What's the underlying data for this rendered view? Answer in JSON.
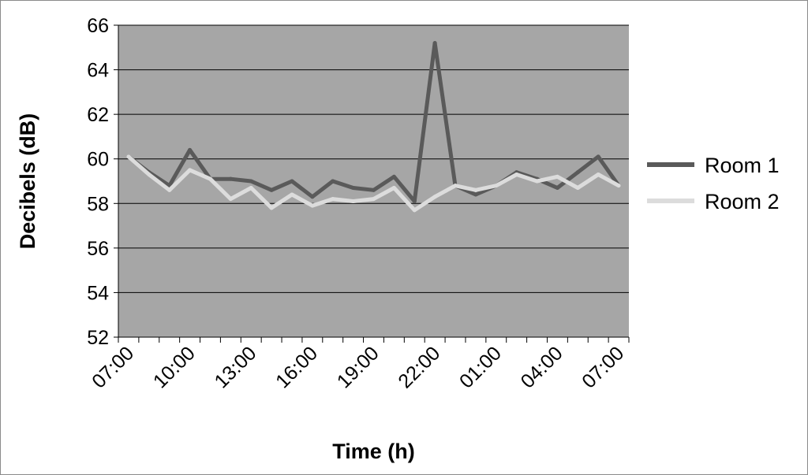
{
  "chart_data": {
    "type": "line",
    "xlabel": "Time (h)",
    "ylabel": "Decibels (dB)",
    "ylim": [
      52,
      66
    ],
    "yticks": [
      52,
      54,
      56,
      58,
      60,
      62,
      64,
      66
    ],
    "x_tick_labels": [
      "07:00",
      "10:00",
      "13:00",
      "16:00",
      "19:00",
      "22:00",
      "01:00",
      "04:00",
      "07:00"
    ],
    "x": [
      "07:00",
      "08:00",
      "09:00",
      "10:00",
      "11:00",
      "12:00",
      "13:00",
      "14:00",
      "15:00",
      "16:00",
      "17:00",
      "18:00",
      "19:00",
      "20:00",
      "21:00",
      "22:00",
      "23:00",
      "00:00",
      "01:00",
      "02:00",
      "03:00",
      "04:00",
      "05:00",
      "06:00",
      "07:00"
    ],
    "grid": true,
    "legend_position": "right",
    "background_color": "#a6a6a6",
    "series": [
      {
        "name": "Room 1",
        "color": "#5a5a5a",
        "values": [
          60.1,
          59.4,
          58.8,
          60.4,
          59.1,
          59.1,
          59.0,
          58.6,
          59.0,
          58.3,
          59.0,
          58.7,
          58.6,
          59.2,
          58.1,
          65.2,
          58.8,
          58.4,
          58.8,
          59.4,
          59.1,
          58.7,
          59.4,
          60.1,
          58.8
        ]
      },
      {
        "name": "Room 2",
        "color": "#dcdcdc",
        "values": [
          60.1,
          59.3,
          58.6,
          59.5,
          59.1,
          58.2,
          58.7,
          57.8,
          58.4,
          57.9,
          58.2,
          58.1,
          58.2,
          58.7,
          57.7,
          58.3,
          58.8,
          58.6,
          58.8,
          59.3,
          59.0,
          59.2,
          58.7,
          59.3,
          58.8
        ]
      }
    ]
  }
}
